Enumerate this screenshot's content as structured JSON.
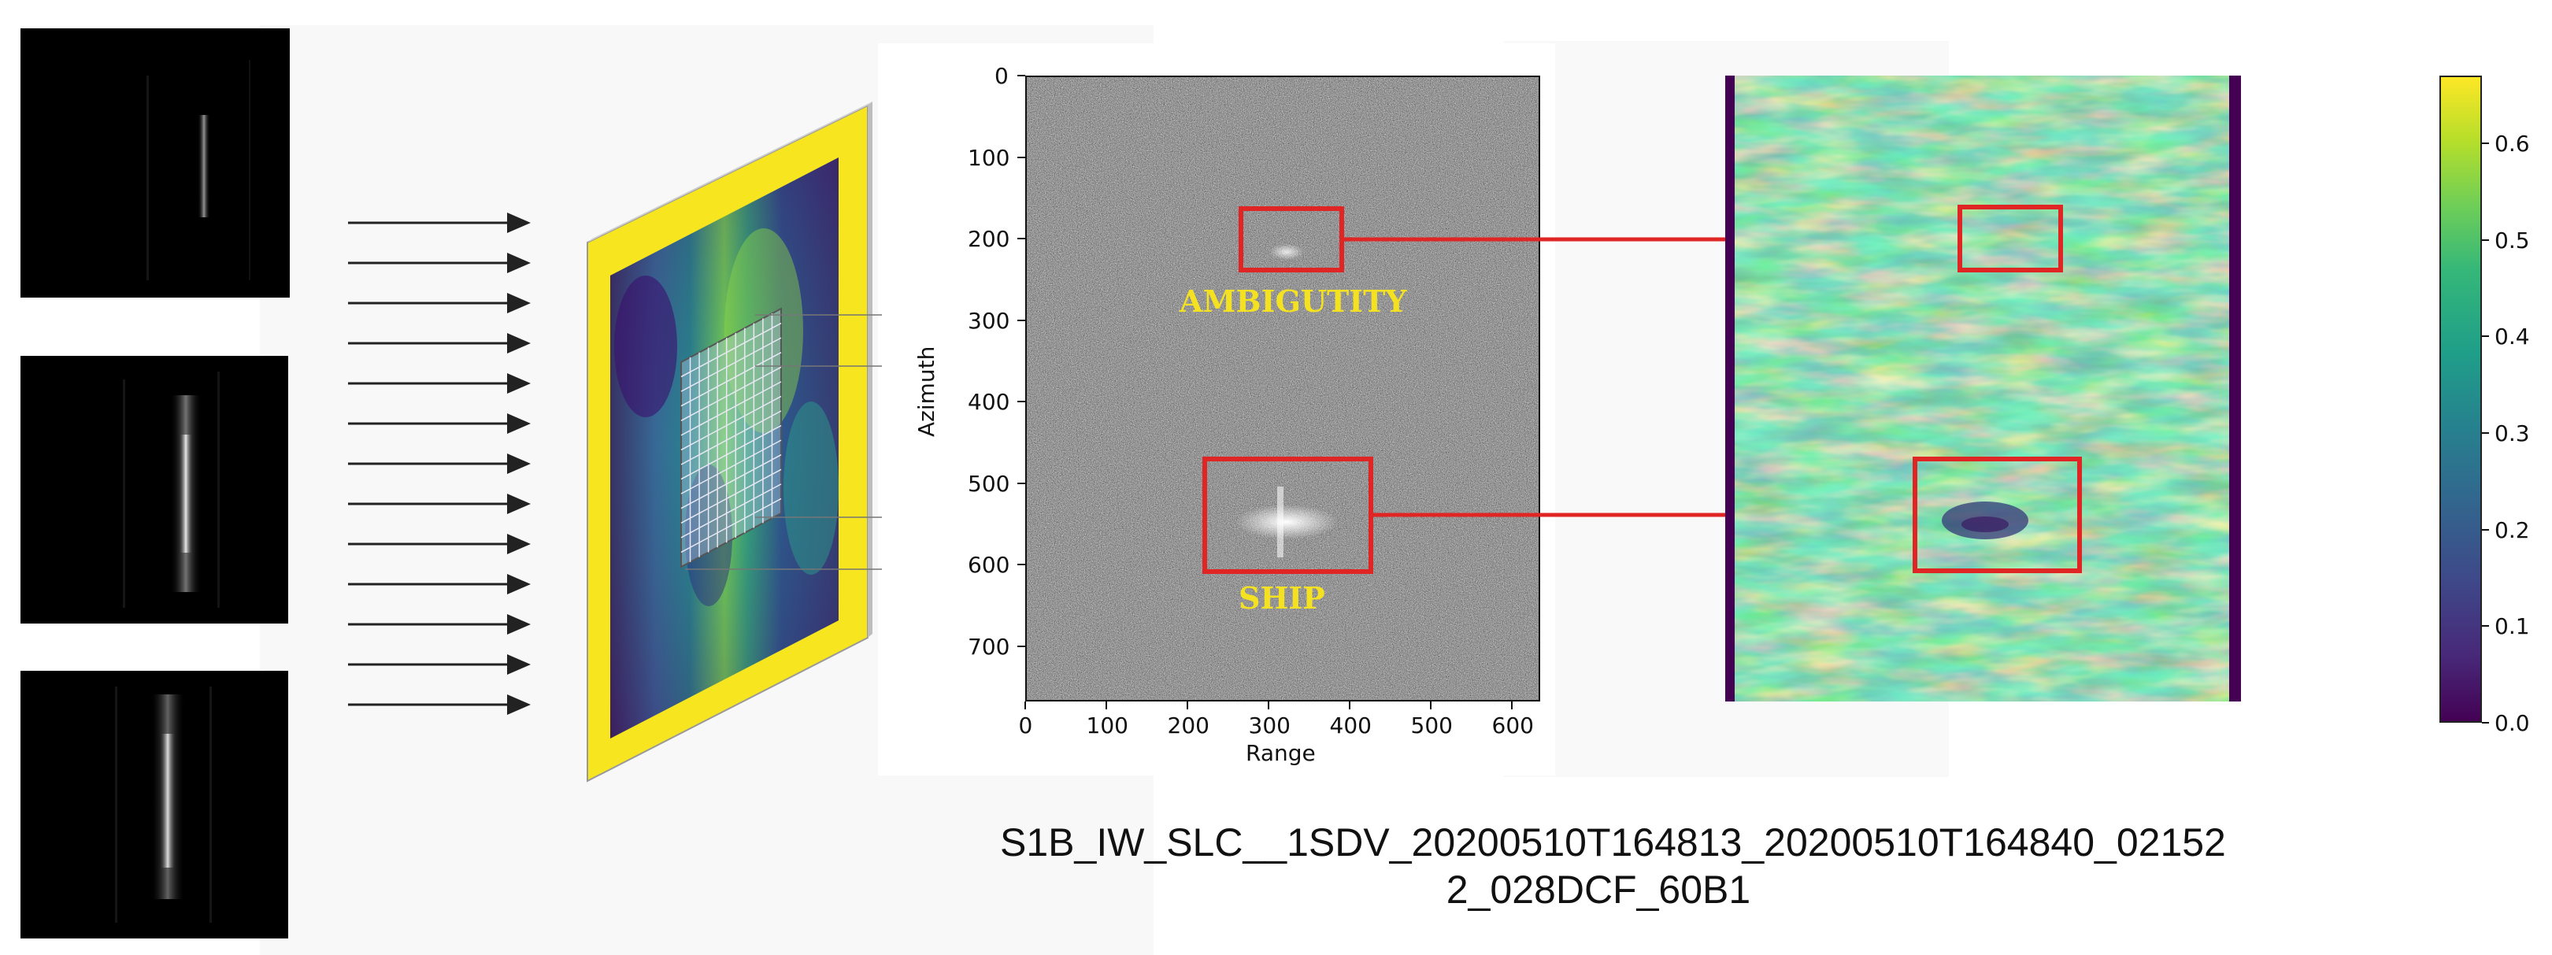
{
  "sar": {
    "axes": {
      "ylabel": "Azimuth",
      "xlabel": "Range",
      "yticks": [
        "0",
        "100",
        "200",
        "300",
        "400",
        "500",
        "600",
        "700"
      ],
      "xticks": [
        "0",
        "100",
        "200",
        "300",
        "400",
        "500",
        "600"
      ]
    },
    "annotations": {
      "ambiguity": "AMBIGUTITY",
      "ship": "SHIP"
    }
  },
  "colorbar": {
    "ticks": [
      "0.6",
      "0.5",
      "0.4",
      "0.3",
      "0.2",
      "0.1",
      "0.0"
    ],
    "colormap": "viridis"
  },
  "caption": {
    "line1": "S1B_IW_SLC__1SDV_20200510T164813_20200510T164840_02152",
    "line2": "2_028DCF_60B1"
  },
  "colors": {
    "highlight_box": "#e02525",
    "annotation_text": "#f3e122",
    "frame_yellow": "#f6e51f",
    "viridis_dark": "#440154"
  }
}
